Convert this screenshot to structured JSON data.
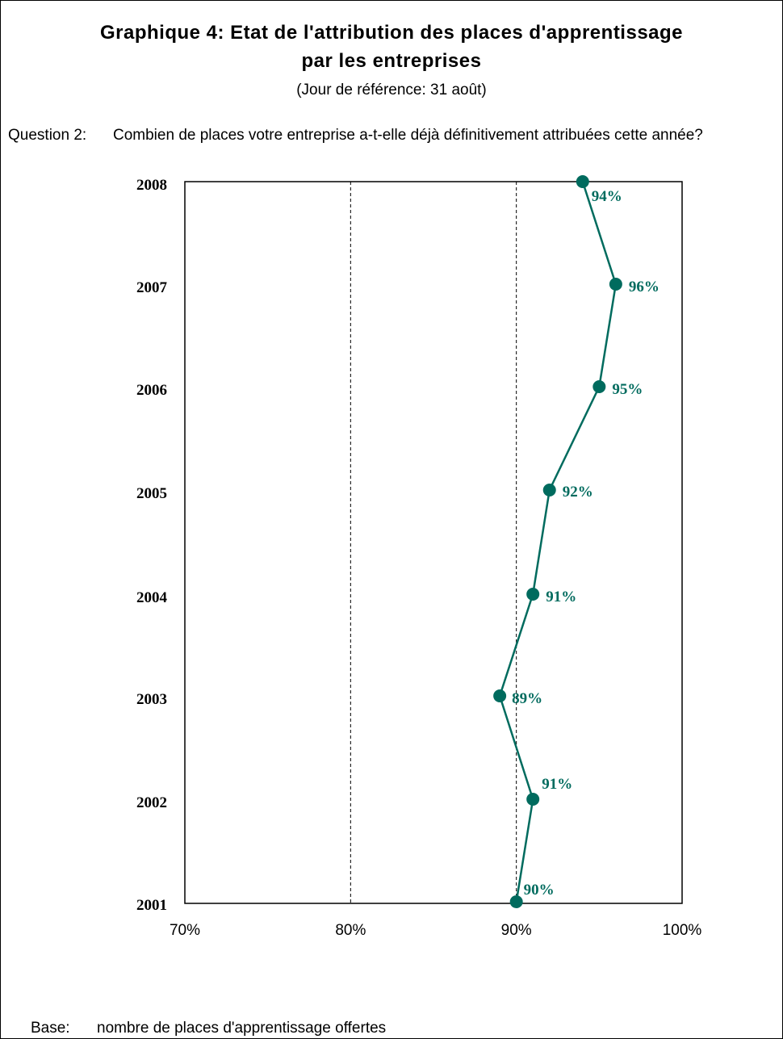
{
  "title_line1": "Graphique 4: Etat de l'attribution des places d'apprentissage",
  "title_line2": "par les entreprises",
  "subtitle": "(Jour de référence: 31 août)",
  "question": {
    "label": "Question 2:",
    "text": "Combien de places votre entreprise a-t-elle déjà définitivement attribuées cette année?"
  },
  "footer": {
    "label": "Base:",
    "text": "nombre de places d'apprentissage offertes"
  },
  "colors": {
    "series": "#006b5e",
    "axis": "#000000"
  },
  "chart_data": {
    "type": "line",
    "orientation": "horizontal",
    "y_categories": [
      "2008",
      "2007",
      "2006",
      "2005",
      "2004",
      "2003",
      "2002",
      "2001"
    ],
    "series": [
      {
        "values": [
          94,
          96,
          95,
          92,
          91,
          89,
          91,
          90
        ],
        "labels": [
          "94%",
          "96%",
          "95%",
          "92%",
          "91%",
          "89%",
          "91%",
          "90%"
        ]
      }
    ],
    "xlim": [
      70,
      100
    ],
    "x_ticks": [
      {
        "value": 70,
        "label": "70%"
      },
      {
        "value": 80,
        "label": "80%"
      },
      {
        "value": 90,
        "label": "90%"
      },
      {
        "value": 100,
        "label": "100%"
      }
    ],
    "gridlines": [
      80,
      90
    ],
    "grid_style": "dashed vertical",
    "legend": "none"
  }
}
